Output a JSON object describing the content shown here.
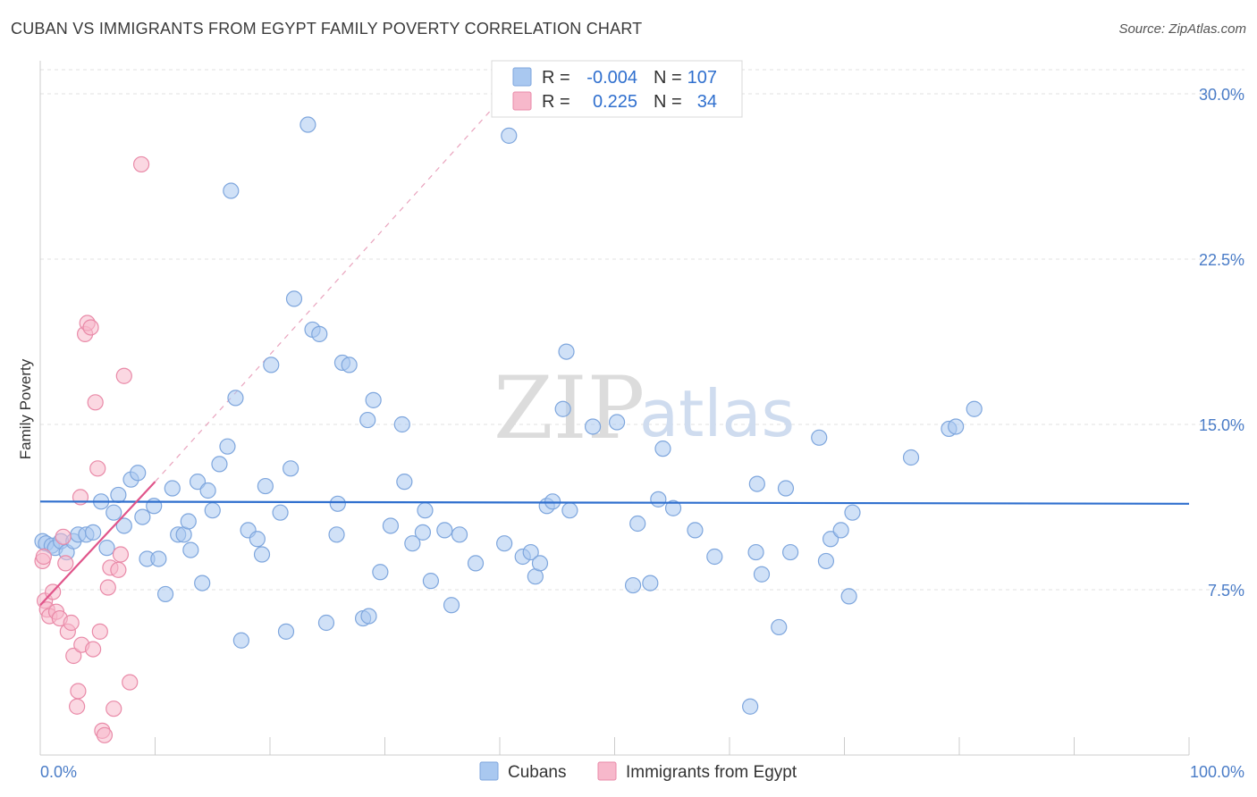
{
  "title": "CUBAN VS IMMIGRANTS FROM EGYPT FAMILY POVERTY CORRELATION CHART",
  "source": "Source: ZipAtlas.com",
  "watermark": {
    "zip": "ZIP",
    "atlas": "atlas"
  },
  "colors": {
    "cubans_fill": "#a9c8f0",
    "cubans_stroke": "#7ea6dd",
    "cubans_line": "#2f6fce",
    "egypt_fill": "#f7b8cb",
    "egypt_stroke": "#e98aa8",
    "egypt_line": "#e0558a",
    "grid": "#e0e0e0",
    "axis": "#cccccc"
  },
  "legend_box": {
    "rows": [
      {
        "r_label": "R =",
        "r_value": "-0.004",
        "n_label": "N =",
        "n_value": "107"
      },
      {
        "r_label": "R =",
        "r_value": "0.225",
        "n_label": "N =",
        "n_value": "34"
      }
    ]
  },
  "chart_data": {
    "type": "scatter",
    "ylabel": "Family Poverty",
    "xlim": [
      0,
      100
    ],
    "ylim": [
      0,
      31.5
    ],
    "x_tick_labels": [
      "0.0%",
      "100.0%"
    ],
    "y_ticks": [
      {
        "value": 7.5,
        "label": "7.5%"
      },
      {
        "value": 15.0,
        "label": "15.0%"
      },
      {
        "value": 22.5,
        "label": "22.5%"
      },
      {
        "value": 30.0,
        "label": "30.0%"
      }
    ],
    "grid": "horizontal-dashed",
    "legend_placement": "top-center",
    "series": [
      {
        "name": "Cubans",
        "trend": {
          "x0": 0,
          "y0": 11.5,
          "x1": 100,
          "y1": 11.4
        },
        "points": [
          [
            0.2,
            9.7
          ],
          [
            0.5,
            9.6
          ],
          [
            1.0,
            9.5
          ],
          [
            1.3,
            9.4
          ],
          [
            1.8,
            9.7
          ],
          [
            2.3,
            9.2
          ],
          [
            2.9,
            9.7
          ],
          [
            3.3,
            10.0
          ],
          [
            4.0,
            10.0
          ],
          [
            4.6,
            10.1
          ],
          [
            5.3,
            11.5
          ],
          [
            5.8,
            9.4
          ],
          [
            6.4,
            11.0
          ],
          [
            6.8,
            11.8
          ],
          [
            7.3,
            10.4
          ],
          [
            7.9,
            12.5
          ],
          [
            8.5,
            12.8
          ],
          [
            8.9,
            10.8
          ],
          [
            9.3,
            8.9
          ],
          [
            9.9,
            11.3
          ],
          [
            10.3,
            8.9
          ],
          [
            10.9,
            7.3
          ],
          [
            11.5,
            12.1
          ],
          [
            12.0,
            10.0
          ],
          [
            12.5,
            10.0
          ],
          [
            12.9,
            10.6
          ],
          [
            13.1,
            9.3
          ],
          [
            13.7,
            12.4
          ],
          [
            14.1,
            7.8
          ],
          [
            14.6,
            12.0
          ],
          [
            15.0,
            11.1
          ],
          [
            15.6,
            13.2
          ],
          [
            16.3,
            14.0
          ],
          [
            16.6,
            25.6
          ],
          [
            17.0,
            16.2
          ],
          [
            17.5,
            5.2
          ],
          [
            18.1,
            10.2
          ],
          [
            18.9,
            9.8
          ],
          [
            19.3,
            9.1
          ],
          [
            19.6,
            12.2
          ],
          [
            20.1,
            17.7
          ],
          [
            20.9,
            11.0
          ],
          [
            21.4,
            5.6
          ],
          [
            21.8,
            13.0
          ],
          [
            22.1,
            20.7
          ],
          [
            23.3,
            28.6
          ],
          [
            23.7,
            19.3
          ],
          [
            24.3,
            19.1
          ],
          [
            24.9,
            6.0
          ],
          [
            25.8,
            10.0
          ],
          [
            25.9,
            11.4
          ],
          [
            26.3,
            17.8
          ],
          [
            26.9,
            17.7
          ],
          [
            28.1,
            6.2
          ],
          [
            28.5,
            15.2
          ],
          [
            28.6,
            6.3
          ],
          [
            29.0,
            16.1
          ],
          [
            29.6,
            8.3
          ],
          [
            30.5,
            10.4
          ],
          [
            31.5,
            15.0
          ],
          [
            31.7,
            12.4
          ],
          [
            32.4,
            9.6
          ],
          [
            33.3,
            10.1
          ],
          [
            33.5,
            11.1
          ],
          [
            34.0,
            7.9
          ],
          [
            35.2,
            10.2
          ],
          [
            35.8,
            6.8
          ],
          [
            36.5,
            10.0
          ],
          [
            37.9,
            8.7
          ],
          [
            40.4,
            9.6
          ],
          [
            42.0,
            9.0
          ],
          [
            42.7,
            9.2
          ],
          [
            43.1,
            8.1
          ],
          [
            43.5,
            8.7
          ],
          [
            44.1,
            11.3
          ],
          [
            44.6,
            11.5
          ],
          [
            45.5,
            15.7
          ],
          [
            45.8,
            18.3
          ],
          [
            46.1,
            11.1
          ],
          [
            48.1,
            14.9
          ],
          [
            50.2,
            15.1
          ],
          [
            51.6,
            7.7
          ],
          [
            52.0,
            10.5
          ],
          [
            53.1,
            7.8
          ],
          [
            53.8,
            11.6
          ],
          [
            54.2,
            13.9
          ],
          [
            55.1,
            11.2
          ],
          [
            57.0,
            10.2
          ],
          [
            58.7,
            9.0
          ],
          [
            62.3,
            9.2
          ],
          [
            62.4,
            12.3
          ],
          [
            62.8,
            8.2
          ],
          [
            64.3,
            5.8
          ],
          [
            64.9,
            12.1
          ],
          [
            65.3,
            9.2
          ],
          [
            67.8,
            14.4
          ],
          [
            68.4,
            8.8
          ],
          [
            68.8,
            9.8
          ],
          [
            69.7,
            10.2
          ],
          [
            70.4,
            7.2
          ],
          [
            70.7,
            11.0
          ],
          [
            75.8,
            13.5
          ],
          [
            79.1,
            14.8
          ],
          [
            79.7,
            14.9
          ],
          [
            81.3,
            15.7
          ],
          [
            61.8,
            2.2
          ],
          [
            40.8,
            28.1
          ]
        ]
      },
      {
        "name": "Immigrants from Egypt",
        "trend": {
          "x0": 0,
          "y0": 6.8,
          "x1": 10,
          "y1": 12.4
        },
        "trend_extension": {
          "x0": 10,
          "y0": 12.4,
          "x1": 40,
          "y1": 29.7
        },
        "points": [
          [
            0.2,
            8.8
          ],
          [
            0.4,
            7.0
          ],
          [
            0.6,
            6.6
          ],
          [
            0.8,
            6.3
          ],
          [
            1.1,
            7.4
          ],
          [
            1.4,
            6.5
          ],
          [
            1.7,
            6.2
          ],
          [
            2.0,
            9.9
          ],
          [
            2.2,
            8.7
          ],
          [
            2.4,
            5.6
          ],
          [
            2.7,
            6.0
          ],
          [
            2.9,
            4.5
          ],
          [
            3.2,
            2.2
          ],
          [
            3.3,
            2.9
          ],
          [
            3.5,
            11.7
          ],
          [
            3.6,
            5.0
          ],
          [
            3.9,
            19.1
          ],
          [
            4.1,
            19.6
          ],
          [
            4.4,
            19.4
          ],
          [
            4.6,
            4.8
          ],
          [
            4.8,
            16.0
          ],
          [
            5.0,
            13.0
          ],
          [
            5.2,
            5.6
          ],
          [
            5.4,
            1.1
          ],
          [
            5.6,
            0.9
          ],
          [
            5.9,
            7.6
          ],
          [
            6.1,
            8.5
          ],
          [
            6.4,
            2.1
          ],
          [
            6.8,
            8.4
          ],
          [
            7.0,
            9.1
          ],
          [
            7.3,
            17.2
          ],
          [
            7.8,
            3.3
          ],
          [
            8.8,
            26.8
          ],
          [
            0.3,
            9.0
          ]
        ]
      }
    ]
  },
  "bottom_legend": [
    {
      "label": "Cubans"
    },
    {
      "label": "Immigrants from Egypt"
    }
  ]
}
